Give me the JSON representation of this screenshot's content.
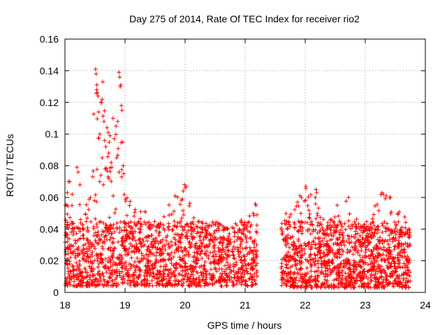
{
  "chart_data": {
    "type": "scatter",
    "title": "Day 275 of 2014, Rate Of TEC Index for receiver rio2",
    "xlabel": "GPS time / hours",
    "ylabel": "ROTI / TECUs",
    "xlim": [
      18,
      24
    ],
    "ylim": [
      0,
      0.16
    ],
    "xticks": [
      18,
      19,
      20,
      21,
      22,
      23,
      24
    ],
    "xtick_labels": [
      "18",
      "19",
      "20",
      "21",
      "22",
      "23",
      "24"
    ],
    "yticks": [
      0,
      0.02,
      0.04,
      0.06,
      0.08,
      0.1,
      0.12,
      0.14,
      0.16
    ],
    "ytick_labels": [
      "0",
      "0.02",
      "0.04",
      "0.06",
      "0.08",
      "0.1",
      "0.12",
      "0.14",
      "0.16"
    ],
    "grid": true,
    "marker": "plus",
    "color": "#ff0000",
    "series": [
      {
        "name": "rio2",
        "segments": [
          {
            "x_range": [
              18.0,
              21.2
            ],
            "approx_count": 1700,
            "baseline_range": [
              0.004,
              0.045
            ],
            "envelope": [
              [
                18.0,
                0.055
              ],
              [
                18.05,
                0.07
              ],
              [
                18.1,
                0.06
              ],
              [
                18.2,
                0.078
              ],
              [
                18.3,
                0.055
              ],
              [
                18.4,
                0.06
              ],
              [
                18.5,
                0.14
              ],
              [
                18.6,
                0.133
              ],
              [
                18.7,
                0.11
              ],
              [
                18.8,
                0.09
              ],
              [
                18.9,
                0.139
              ],
              [
                19.0,
                0.065
              ],
              [
                19.1,
                0.058
              ],
              [
                19.3,
                0.06
              ],
              [
                19.5,
                0.05
              ],
              [
                19.7,
                0.06
              ],
              [
                19.9,
                0.063
              ],
              [
                20.0,
                0.069
              ],
              [
                20.1,
                0.055
              ],
              [
                20.3,
                0.05
              ],
              [
                20.5,
                0.045
              ],
              [
                20.7,
                0.04
              ],
              [
                20.9,
                0.045
              ],
              [
                21.1,
                0.05
              ],
              [
                21.2,
                0.056
              ]
            ]
          },
          {
            "x_range": [
              21.6,
              23.75
            ],
            "approx_count": 1300,
            "baseline_range": [
              0.003,
              0.045
            ],
            "envelope": [
              [
                21.6,
                0.056
              ],
              [
                21.8,
                0.058
              ],
              [
                22.0,
                0.067
              ],
              [
                22.2,
                0.065
              ],
              [
                22.4,
                0.05
              ],
              [
                22.5,
                0.056
              ],
              [
                22.7,
                0.06
              ],
              [
                22.9,
                0.045
              ],
              [
                23.1,
                0.045
              ],
              [
                23.2,
                0.062
              ],
              [
                23.3,
                0.063
              ],
              [
                23.4,
                0.061
              ],
              [
                23.5,
                0.055
              ],
              [
                23.6,
                0.055
              ],
              [
                23.75,
                0.04
              ]
            ]
          }
        ],
        "extra_points": [
          [
            18.08,
            0.07
          ],
          [
            18.12,
            0.062
          ],
          [
            18.2,
            0.079
          ],
          [
            18.22,
            0.076
          ],
          [
            18.25,
            0.068
          ],
          [
            18.51,
            0.141
          ],
          [
            18.52,
            0.138
          ],
          [
            18.53,
            0.128
          ],
          [
            18.54,
            0.126
          ],
          [
            18.56,
            0.114
          ],
          [
            18.58,
            0.1
          ],
          [
            18.6,
            0.12
          ],
          [
            18.62,
            0.122
          ],
          [
            18.63,
            0.133
          ],
          [
            18.65,
            0.108
          ],
          [
            18.66,
            0.096
          ],
          [
            18.68,
            0.092
          ],
          [
            18.7,
            0.104
          ],
          [
            18.72,
            0.101
          ],
          [
            18.73,
            0.088
          ],
          [
            18.75,
            0.099
          ],
          [
            18.77,
            0.082
          ],
          [
            18.78,
            0.079
          ],
          [
            18.8,
            0.11
          ],
          [
            18.82,
            0.097
          ],
          [
            18.85,
            0.105
          ],
          [
            18.88,
            0.108
          ],
          [
            18.9,
            0.139
          ],
          [
            18.91,
            0.136
          ],
          [
            18.92,
            0.13
          ],
          [
            18.93,
            0.131
          ],
          [
            18.94,
            0.118
          ],
          [
            18.95,
            0.115
          ],
          [
            18.96,
            0.095
          ],
          [
            18.97,
            0.08
          ],
          [
            18.98,
            0.075
          ],
          [
            18.6,
            0.074
          ],
          [
            18.62,
            0.085
          ],
          [
            18.67,
            0.078
          ],
          [
            18.58,
            0.07
          ],
          [
            18.64,
            0.068
          ],
          [
            18.72,
            0.073
          ],
          [
            18.86,
            0.085
          ],
          [
            18.9,
            0.076
          ],
          [
            19.99,
            0.068
          ],
          [
            20.0,
            0.066
          ],
          [
            20.02,
            0.067
          ],
          [
            19.97,
            0.064
          ],
          [
            22.01,
            0.067
          ],
          [
            22.18,
            0.065
          ],
          [
            22.19,
            0.063
          ],
          [
            22.17,
            0.06
          ],
          [
            23.28,
            0.063
          ],
          [
            23.3,
            0.062
          ],
          [
            23.35,
            0.061
          ],
          [
            23.42,
            0.06
          ],
          [
            22.72,
            0.06
          ],
          [
            21.17,
            0.056
          ],
          [
            21.18,
            0.055
          ],
          [
            18.04,
            0.063
          ],
          [
            18.06,
            0.07
          ]
        ]
      }
    ]
  }
}
